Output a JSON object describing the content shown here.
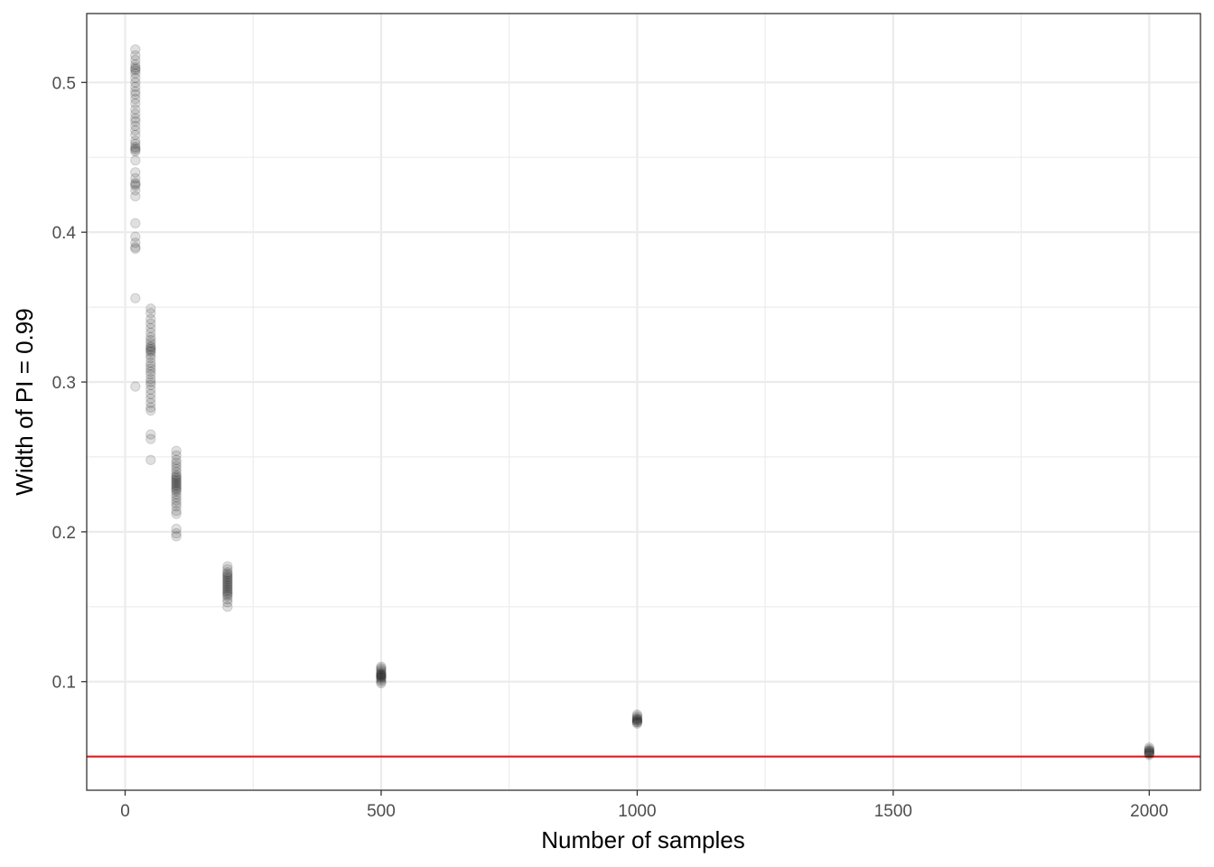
{
  "chart_data": {
    "type": "scatter",
    "title": "",
    "xlabel": "Number of samples",
    "ylabel": "Width of PI = 0.99",
    "xlim": [
      -75,
      2100
    ],
    "ylim": [
      0.0275,
      0.546
    ],
    "x_ticks": [
      0,
      500,
      1000,
      1500,
      2000
    ],
    "x_tick_labels": [
      "0",
      "500",
      "1000",
      "1500",
      "2000"
    ],
    "y_ticks": [
      0.1,
      0.2,
      0.3,
      0.4,
      0.5
    ],
    "y_tick_labels": [
      "0.1",
      "0.2",
      "0.3",
      "0.4",
      "0.5"
    ],
    "grid": true,
    "point_color": "#000000",
    "point_alpha": 0.12,
    "reference_line": {
      "y": 0.05,
      "color": "#e41a1c"
    },
    "series": [
      {
        "points": [
          {
            "x": 20,
            "y": 0.522
          },
          {
            "x": 20,
            "y": 0.518
          },
          {
            "x": 20,
            "y": 0.515
          },
          {
            "x": 20,
            "y": 0.512
          },
          {
            "x": 20,
            "y": 0.51
          },
          {
            "x": 20,
            "y": 0.509
          },
          {
            "x": 20,
            "y": 0.508
          },
          {
            "x": 20,
            "y": 0.506
          },
          {
            "x": 20,
            "y": 0.503
          },
          {
            "x": 20,
            "y": 0.5
          },
          {
            "x": 20,
            "y": 0.497
          },
          {
            "x": 20,
            "y": 0.494
          },
          {
            "x": 20,
            "y": 0.492
          },
          {
            "x": 20,
            "y": 0.489
          },
          {
            "x": 20,
            "y": 0.486
          },
          {
            "x": 20,
            "y": 0.482
          },
          {
            "x": 20,
            "y": 0.479
          },
          {
            "x": 20,
            "y": 0.476
          },
          {
            "x": 20,
            "y": 0.474
          },
          {
            "x": 20,
            "y": 0.471
          },
          {
            "x": 20,
            "y": 0.468
          },
          {
            "x": 20,
            "y": 0.465
          },
          {
            "x": 20,
            "y": 0.461
          },
          {
            "x": 20,
            "y": 0.459
          },
          {
            "x": 20,
            "y": 0.457
          },
          {
            "x": 20,
            "y": 0.456
          },
          {
            "x": 20,
            "y": 0.455
          },
          {
            "x": 20,
            "y": 0.454
          },
          {
            "x": 20,
            "y": 0.448
          },
          {
            "x": 20,
            "y": 0.44
          },
          {
            "x": 20,
            "y": 0.436
          },
          {
            "x": 20,
            "y": 0.433
          },
          {
            "x": 20,
            "y": 0.432
          },
          {
            "x": 20,
            "y": 0.431
          },
          {
            "x": 20,
            "y": 0.428
          },
          {
            "x": 20,
            "y": 0.424
          },
          {
            "x": 20,
            "y": 0.406
          },
          {
            "x": 20,
            "y": 0.397
          },
          {
            "x": 20,
            "y": 0.393
          },
          {
            "x": 20,
            "y": 0.39
          },
          {
            "x": 20,
            "y": 0.389
          },
          {
            "x": 20,
            "y": 0.356
          },
          {
            "x": 20,
            "y": 0.297
          },
          {
            "x": 50,
            "y": 0.349
          },
          {
            "x": 50,
            "y": 0.346
          },
          {
            "x": 50,
            "y": 0.342
          },
          {
            "x": 50,
            "y": 0.339
          },
          {
            "x": 50,
            "y": 0.336
          },
          {
            "x": 50,
            "y": 0.333
          },
          {
            "x": 50,
            "y": 0.33
          },
          {
            "x": 50,
            "y": 0.328
          },
          {
            "x": 50,
            "y": 0.326
          },
          {
            "x": 50,
            "y": 0.324
          },
          {
            "x": 50,
            "y": 0.323
          },
          {
            "x": 50,
            "y": 0.322
          },
          {
            "x": 50,
            "y": 0.321
          },
          {
            "x": 50,
            "y": 0.32
          },
          {
            "x": 50,
            "y": 0.318
          },
          {
            "x": 50,
            "y": 0.316
          },
          {
            "x": 50,
            "y": 0.313
          },
          {
            "x": 50,
            "y": 0.311
          },
          {
            "x": 50,
            "y": 0.309
          },
          {
            "x": 50,
            "y": 0.307
          },
          {
            "x": 50,
            "y": 0.305
          },
          {
            "x": 50,
            "y": 0.302
          },
          {
            "x": 50,
            "y": 0.3
          },
          {
            "x": 50,
            "y": 0.298
          },
          {
            "x": 50,
            "y": 0.295
          },
          {
            "x": 50,
            "y": 0.292
          },
          {
            "x": 50,
            "y": 0.289
          },
          {
            "x": 50,
            "y": 0.286
          },
          {
            "x": 50,
            "y": 0.283
          },
          {
            "x": 50,
            "y": 0.281
          },
          {
            "x": 50,
            "y": 0.265
          },
          {
            "x": 50,
            "y": 0.262
          },
          {
            "x": 50,
            "y": 0.248
          },
          {
            "x": 100,
            "y": 0.254
          },
          {
            "x": 100,
            "y": 0.251
          },
          {
            "x": 100,
            "y": 0.248
          },
          {
            "x": 100,
            "y": 0.246
          },
          {
            "x": 100,
            "y": 0.244
          },
          {
            "x": 100,
            "y": 0.242
          },
          {
            "x": 100,
            "y": 0.24
          },
          {
            "x": 100,
            "y": 0.238
          },
          {
            "x": 100,
            "y": 0.237
          },
          {
            "x": 100,
            "y": 0.236
          },
          {
            "x": 100,
            "y": 0.235
          },
          {
            "x": 100,
            "y": 0.234
          },
          {
            "x": 100,
            "y": 0.233
          },
          {
            "x": 100,
            "y": 0.232
          },
          {
            "x": 100,
            "y": 0.231
          },
          {
            "x": 100,
            "y": 0.23
          },
          {
            "x": 100,
            "y": 0.229
          },
          {
            "x": 100,
            "y": 0.228
          },
          {
            "x": 100,
            "y": 0.227
          },
          {
            "x": 100,
            "y": 0.225
          },
          {
            "x": 100,
            "y": 0.223
          },
          {
            "x": 100,
            "y": 0.221
          },
          {
            "x": 100,
            "y": 0.219
          },
          {
            "x": 100,
            "y": 0.217
          },
          {
            "x": 100,
            "y": 0.214
          },
          {
            "x": 100,
            "y": 0.212
          },
          {
            "x": 100,
            "y": 0.202
          },
          {
            "x": 100,
            "y": 0.199
          },
          {
            "x": 100,
            "y": 0.197
          },
          {
            "x": 200,
            "y": 0.177
          },
          {
            "x": 200,
            "y": 0.175
          },
          {
            "x": 200,
            "y": 0.173
          },
          {
            "x": 200,
            "y": 0.172
          },
          {
            "x": 200,
            "y": 0.171
          },
          {
            "x": 200,
            "y": 0.17
          },
          {
            "x": 200,
            "y": 0.169
          },
          {
            "x": 200,
            "y": 0.168
          },
          {
            "x": 200,
            "y": 0.167
          },
          {
            "x": 200,
            "y": 0.166
          },
          {
            "x": 200,
            "y": 0.165
          },
          {
            "x": 200,
            "y": 0.164
          },
          {
            "x": 200,
            "y": 0.163
          },
          {
            "x": 200,
            "y": 0.162
          },
          {
            "x": 200,
            "y": 0.161
          },
          {
            "x": 200,
            "y": 0.16
          },
          {
            "x": 200,
            "y": 0.159
          },
          {
            "x": 200,
            "y": 0.158
          },
          {
            "x": 200,
            "y": 0.157
          },
          {
            "x": 200,
            "y": 0.155
          },
          {
            "x": 200,
            "y": 0.153
          },
          {
            "x": 200,
            "y": 0.15
          },
          {
            "x": 500,
            "y": 0.11
          },
          {
            "x": 500,
            "y": 0.109
          },
          {
            "x": 500,
            "y": 0.108
          },
          {
            "x": 500,
            "y": 0.107
          },
          {
            "x": 500,
            "y": 0.106
          },
          {
            "x": 500,
            "y": 0.105
          },
          {
            "x": 500,
            "y": 0.105
          },
          {
            "x": 500,
            "y": 0.104
          },
          {
            "x": 500,
            "y": 0.104
          },
          {
            "x": 500,
            "y": 0.103
          },
          {
            "x": 500,
            "y": 0.103
          },
          {
            "x": 500,
            "y": 0.102
          },
          {
            "x": 500,
            "y": 0.101
          },
          {
            "x": 500,
            "y": 0.1
          },
          {
            "x": 500,
            "y": 0.099
          },
          {
            "x": 1000,
            "y": 0.078
          },
          {
            "x": 1000,
            "y": 0.077
          },
          {
            "x": 1000,
            "y": 0.076
          },
          {
            "x": 1000,
            "y": 0.075
          },
          {
            "x": 1000,
            "y": 0.075
          },
          {
            "x": 1000,
            "y": 0.074
          },
          {
            "x": 1000,
            "y": 0.074
          },
          {
            "x": 1000,
            "y": 0.073
          },
          {
            "x": 1000,
            "y": 0.073
          },
          {
            "x": 1000,
            "y": 0.072
          },
          {
            "x": 2000,
            "y": 0.056
          },
          {
            "x": 2000,
            "y": 0.055
          },
          {
            "x": 2000,
            "y": 0.054
          },
          {
            "x": 2000,
            "y": 0.054
          },
          {
            "x": 2000,
            "y": 0.053
          },
          {
            "x": 2000,
            "y": 0.053
          },
          {
            "x": 2000,
            "y": 0.052
          },
          {
            "x": 2000,
            "y": 0.052
          },
          {
            "x": 2000,
            "y": 0.051
          }
        ]
      }
    ]
  }
}
